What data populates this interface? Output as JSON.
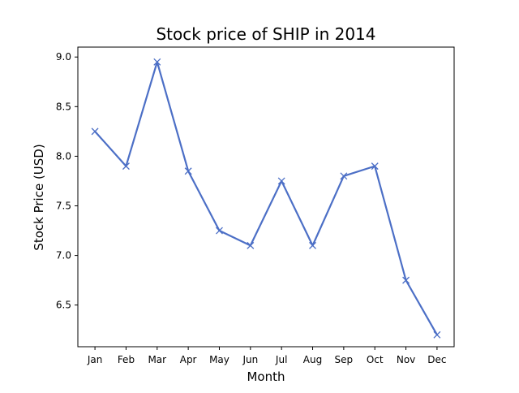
{
  "chart_data": {
    "type": "line",
    "title": "Stock price of SHIP in 2014",
    "xlabel": "Month",
    "ylabel": "Stock Price (USD)",
    "categories": [
      "Jan",
      "Feb",
      "Mar",
      "Apr",
      "May",
      "Jun",
      "Jul",
      "Aug",
      "Sep",
      "Oct",
      "Nov",
      "Dec"
    ],
    "series": [
      {
        "values": [
          8.25,
          7.9,
          8.95,
          7.85,
          7.25,
          7.1,
          7.75,
          7.1,
          7.8,
          7.9,
          6.75,
          6.2
        ],
        "color": "#4c6fc6",
        "marker": "x"
      }
    ],
    "ylim": [
      6.08,
      9.1
    ],
    "yticks": [
      6.5,
      7.0,
      7.5,
      8.0,
      8.5,
      9.0
    ],
    "ytick_labels": [
      "6.5",
      "7.0",
      "7.5",
      "8.0",
      "8.5",
      "9.0"
    ],
    "grid": false,
    "legend": "none"
  }
}
